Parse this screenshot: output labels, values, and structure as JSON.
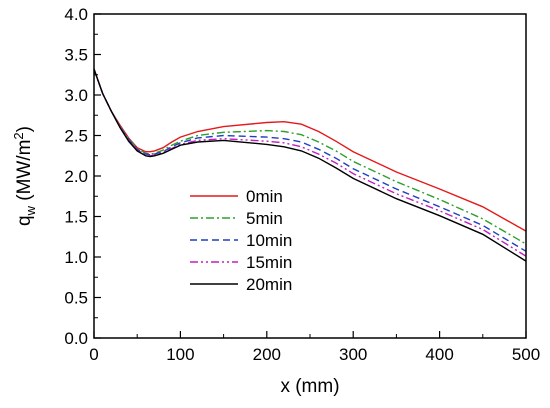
{
  "chart_data": {
    "type": "line",
    "xlabel": "x (mm)",
    "ylabel": {
      "main": "q",
      "sub": "w",
      "unit_open": " (MW/m",
      "sup": "2",
      "unit_close": ")"
    },
    "xlim": [
      0,
      500
    ],
    "ylim": [
      0,
      4.0
    ],
    "xticks": [
      {
        "v": 0,
        "label": "0"
      },
      {
        "v": 100,
        "label": "100"
      },
      {
        "v": 200,
        "label": "200"
      },
      {
        "v": 300,
        "label": "300"
      },
      {
        "v": 400,
        "label": "400"
      },
      {
        "v": 500,
        "label": "500"
      }
    ],
    "yticks": [
      {
        "v": 0,
        "label": "0.0"
      },
      {
        "v": 0.5,
        "label": "0.5"
      },
      {
        "v": 1.0,
        "label": "1.0"
      },
      {
        "v": 1.5,
        "label": "1.5"
      },
      {
        "v": 2.0,
        "label": "2.0"
      },
      {
        "v": 2.5,
        "label": "2.5"
      },
      {
        "v": 3.0,
        "label": "3.0"
      },
      {
        "v": 3.5,
        "label": "3.5"
      },
      {
        "v": 4.0,
        "label": "4.0"
      }
    ],
    "grid": false,
    "legend_position": "lower-center",
    "series": [
      {
        "name": "0min",
        "color": "#e41a1c",
        "dash": "solid",
        "x": [
          0,
          10,
          20,
          30,
          40,
          50,
          60,
          65,
          70,
          80,
          90,
          100,
          120,
          150,
          200,
          220,
          240,
          260,
          280,
          300,
          350,
          400,
          450,
          500
        ],
        "y": [
          3.32,
          3.02,
          2.8,
          2.63,
          2.47,
          2.35,
          2.3,
          2.3,
          2.31,
          2.35,
          2.42,
          2.48,
          2.55,
          2.61,
          2.66,
          2.67,
          2.64,
          2.55,
          2.43,
          2.3,
          2.05,
          1.84,
          1.62,
          1.32
        ]
      },
      {
        "name": "5min",
        "color": "#2ca02c",
        "dash": "dashdot",
        "x": [
          0,
          10,
          20,
          30,
          40,
          50,
          60,
          65,
          70,
          80,
          90,
          100,
          120,
          150,
          200,
          220,
          240,
          260,
          280,
          300,
          350,
          400,
          450,
          500
        ],
        "y": [
          3.32,
          3.02,
          2.8,
          2.62,
          2.46,
          2.34,
          2.28,
          2.27,
          2.28,
          2.32,
          2.38,
          2.43,
          2.5,
          2.54,
          2.56,
          2.55,
          2.51,
          2.42,
          2.31,
          2.18,
          1.93,
          1.71,
          1.47,
          1.16
        ]
      },
      {
        "name": "10min",
        "color": "#1f3fbf",
        "dash": "dashed",
        "x": [
          0,
          10,
          20,
          30,
          40,
          50,
          60,
          65,
          70,
          80,
          90,
          100,
          120,
          150,
          200,
          220,
          240,
          260,
          280,
          300,
          350,
          400,
          450,
          500
        ],
        "y": [
          3.32,
          3.02,
          2.8,
          2.61,
          2.45,
          2.33,
          2.27,
          2.26,
          2.27,
          2.3,
          2.36,
          2.41,
          2.47,
          2.5,
          2.48,
          2.46,
          2.42,
          2.33,
          2.22,
          2.09,
          1.84,
          1.62,
          1.39,
          1.07
        ]
      },
      {
        "name": "15min",
        "color": "#c21fc2",
        "dash": "dashdotdot",
        "x": [
          0,
          10,
          20,
          30,
          40,
          50,
          60,
          65,
          70,
          80,
          90,
          100,
          120,
          150,
          200,
          220,
          240,
          260,
          280,
          300,
          350,
          400,
          450,
          500
        ],
        "y": [
          3.32,
          3.02,
          2.8,
          2.61,
          2.44,
          2.32,
          2.26,
          2.25,
          2.26,
          2.29,
          2.34,
          2.39,
          2.44,
          2.46,
          2.43,
          2.41,
          2.36,
          2.27,
          2.16,
          2.03,
          1.78,
          1.57,
          1.34,
          1.01
        ]
      },
      {
        "name": "20min",
        "color": "#000000",
        "dash": "solid",
        "x": [
          0,
          10,
          20,
          30,
          40,
          50,
          60,
          65,
          70,
          80,
          90,
          100,
          120,
          150,
          200,
          220,
          240,
          260,
          280,
          300,
          350,
          400,
          450,
          500
        ],
        "y": [
          3.32,
          3.02,
          2.8,
          2.6,
          2.43,
          2.31,
          2.25,
          2.24,
          2.25,
          2.28,
          2.33,
          2.38,
          2.42,
          2.44,
          2.39,
          2.36,
          2.31,
          2.22,
          2.1,
          1.97,
          1.72,
          1.51,
          1.28,
          0.95
        ]
      }
    ]
  }
}
